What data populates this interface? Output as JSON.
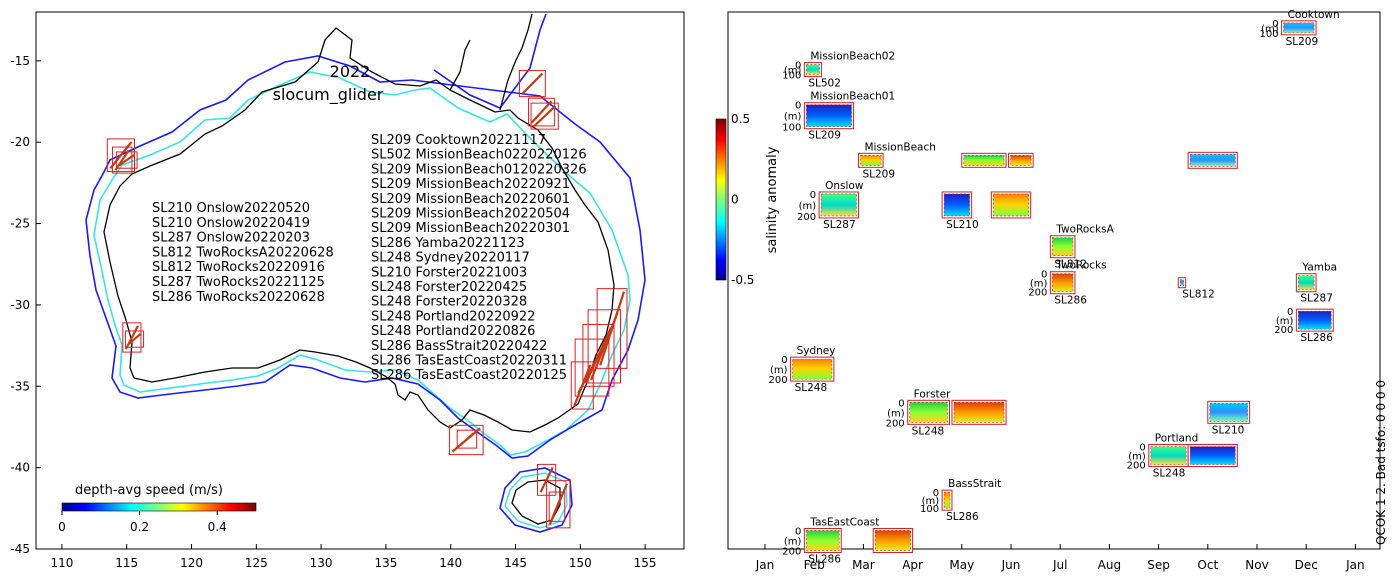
{
  "chart_data": [
    {
      "type": "map",
      "title_lines": [
        "2022",
        "slocum_glider"
      ],
      "xlim": [
        108,
        158
      ],
      "ylim": [
        -45,
        -12
      ],
      "xticks": [
        110,
        115,
        120,
        125,
        130,
        135,
        140,
        145,
        150,
        155
      ],
      "yticks": [
        -15,
        -20,
        -25,
        -30,
        -35,
        -40,
        -45
      ],
      "west_deployments": [
        "SL210 Onslow20220520",
        "SL210 Onslow20220419",
        "SL287 Onslow20220203",
        "SL812 TwoRocksA20220628",
        "SL812 TwoRocks20220916",
        "SL287 TwoRocks20221125",
        "SL286 TwoRocks20220628"
      ],
      "east_deployments": [
        "SL209 Cooktown20221117",
        "SL502 MissionBeach0220220126",
        "SL209 MissionBeach0120220326",
        "SL209 MissionBeach20220921",
        "SL209 MissionBeach20220601",
        "SL209 MissionBeach20220504",
        "SL209 MissionBeach20220301",
        "SL286 Yamba20221123",
        "SL248 Sydney20220117",
        "SL210 Forster20221003",
        "SL248 Forster20220425",
        "SL248 Forster20220328",
        "SL248 Portland20220922",
        "SL248 Portland20220826",
        "SL286 BassStrait20220422",
        "SL286 TasEastCoast20220311",
        "SL286 TasEastCoast20220125"
      ],
      "colorbar": {
        "label": "depth-avg speed (m/s)",
        "ticks": [
          "0",
          "0.2",
          "0.4"
        ],
        "range": [
          0,
          0.5
        ]
      },
      "deployment_boxes": [
        {
          "lon": [
            145.3,
            147.3
          ],
          "lat": [
            -17.2,
            -15.6
          ]
        },
        {
          "lon": [
            146.0,
            148.0
          ],
          "lat": [
            -19.0,
            -17.3
          ]
        },
        {
          "lon": [
            146.2,
            148.3
          ],
          "lat": [
            -19.2,
            -17.6
          ]
        },
        {
          "lon": [
            113.5,
            115.6
          ],
          "lat": [
            -21.8,
            -19.8
          ]
        },
        {
          "lon": [
            113.9,
            115.4
          ],
          "lat": [
            -21.9,
            -20.3
          ]
        },
        {
          "lon": [
            114.2,
            115.8
          ],
          "lat": [
            -21.6,
            -20.6
          ]
        },
        {
          "lon": [
            114.7,
            116.1
          ],
          "lat": [
            -32.9,
            -31.1
          ]
        },
        {
          "lon": [
            114.9,
            116.3
          ],
          "lat": [
            -32.6,
            -31.6
          ]
        },
        {
          "lon": [
            151.3,
            153.6
          ],
          "lat": [
            -33.9,
            -29.0
          ]
        },
        {
          "lon": [
            150.6,
            153.1
          ],
          "lat": [
            -34.8,
            -30.3
          ]
        },
        {
          "lon": [
            150.2,
            152.6
          ],
          "lat": [
            -35.0,
            -31.2
          ]
        },
        {
          "lon": [
            149.6,
            152.2
          ],
          "lat": [
            -35.6,
            -32.1
          ]
        },
        {
          "lon": [
            149.3,
            151.0
          ],
          "lat": [
            -36.4,
            -33.5
          ]
        },
        {
          "lon": [
            139.9,
            142.5
          ],
          "lat": [
            -39.2,
            -37.4
          ]
        },
        {
          "lon": [
            140.5,
            142.0
          ],
          "lat": [
            -38.8,
            -37.7
          ]
        },
        {
          "lon": [
            146.7,
            148.1
          ],
          "lat": [
            -41.7,
            -39.8
          ]
        },
        {
          "lon": [
            147.4,
            149.2
          ],
          "lat": [
            -43.7,
            -40.8
          ]
        },
        {
          "lon": [
            147.6,
            148.8
          ],
          "lat": [
            -43.3,
            -41.5
          ]
        }
      ]
    },
    {
      "type": "timeline",
      "ylabel_colorbar": "salinity anomaly",
      "colorbar_ticks": [
        "0.5",
        "0",
        "-0.5"
      ],
      "colorbar_range": [
        -0.5,
        0.5
      ],
      "months": [
        "Jan",
        "Feb",
        "Mar",
        "Apr",
        "May",
        "Jun",
        "Jul",
        "Aug",
        "Sep",
        "Oct",
        "Nov",
        "Dec",
        "Jan"
      ],
      "side_note": "QCOK 1  2. Bad tsfo: 0  0  0  0",
      "panels": [
        {
          "site": "Cooktown",
          "glider": "SL209",
          "depth_max": "100",
          "start": 10.5,
          "end": 11.2,
          "row": 1.1,
          "h": 14
        },
        {
          "site": "MissionBeach02",
          "glider": "SL502",
          "depth_max": "100",
          "start": 0.8,
          "end": 1.15,
          "row": 4.0,
          "h": 14
        },
        {
          "site": "MissionBeach01",
          "glider": "SL209",
          "depth_max": "100",
          "start": 0.8,
          "end": 1.8,
          "row": 7.2,
          "h": 26
        },
        {
          "site": "MissionBeach",
          "glider": "SL209",
          "depth_max": "",
          "start": 1.9,
          "end": 2.4,
          "row": 10.3,
          "h": 14
        },
        {
          "site": "",
          "glider": "",
          "depth_max": "",
          "start": 4.0,
          "end": 4.9,
          "row": 10.3,
          "h": 14
        },
        {
          "site": "",
          "glider": "",
          "depth_max": "",
          "start": 4.95,
          "end": 5.45,
          "row": 10.3,
          "h": 14
        },
        {
          "site": "",
          "glider": "",
          "depth_max": "",
          "start": 8.6,
          "end": 9.6,
          "row": 10.3,
          "h": 16
        },
        {
          "site": "Onslow",
          "glider": "SL287",
          "depth_max": "200",
          "start": 1.1,
          "end": 1.9,
          "row": 13.4,
          "h": 26
        },
        {
          "site": "",
          "glider": "SL210",
          "depth_max": "",
          "start": 3.6,
          "end": 4.2,
          "row": 13.4,
          "h": 26
        },
        {
          "site": "",
          "glider": "",
          "depth_max": "",
          "start": 4.6,
          "end": 5.4,
          "row": 13.4,
          "h": 26
        },
        {
          "site": "TwoRocksA",
          "glider": "SL812",
          "depth_max": "",
          "start": 5.8,
          "end": 6.3,
          "row": 16.3,
          "h": 22
        },
        {
          "site": "TwoRocks",
          "glider": "SL286",
          "depth_max": "200",
          "start": 5.8,
          "end": 6.3,
          "row": 18.8,
          "h": 22
        },
        {
          "site": "",
          "glider": "SL812",
          "depth_max": "",
          "start": 8.4,
          "end": 8.55,
          "row": 18.8,
          "h": 10
        },
        {
          "site": "Yamba",
          "glider": "SL287",
          "depth_max": "",
          "start": 10.8,
          "end": 11.2,
          "row": 18.8,
          "h": 18
        },
        {
          "site": "",
          "glider": "SL286",
          "depth_max": "200",
          "start": 10.8,
          "end": 11.55,
          "row": 21.4,
          "h": 22
        },
        {
          "site": "Sydney",
          "glider": "SL248",
          "depth_max": "200",
          "start": 0.52,
          "end": 1.4,
          "row": 24.8,
          "h": 24
        },
        {
          "site": "Forster",
          "glider": "SL248",
          "depth_max": "200",
          "start": 2.9,
          "end": 3.75,
          "row": 27.8,
          "h": 24
        },
        {
          "site": "",
          "glider": "",
          "depth_max": "",
          "start": 3.8,
          "end": 4.9,
          "row": 27.8,
          "h": 24
        },
        {
          "site": "",
          "glider": "SL210",
          "depth_max": "",
          "start": 9.0,
          "end": 9.85,
          "row": 27.8,
          "h": 22
        },
        {
          "site": "Portland",
          "glider": "SL248",
          "depth_max": "200",
          "start": 7.8,
          "end": 8.6,
          "row": 30.8,
          "h": 22
        },
        {
          "site": "",
          "glider": "",
          "depth_max": "",
          "start": 8.6,
          "end": 9.6,
          "row": 30.8,
          "h": 22
        },
        {
          "site": "BassStrait",
          "glider": "SL286",
          "depth_max": "100",
          "start": 3.6,
          "end": 3.8,
          "row": 33.9,
          "h": 20
        },
        {
          "site": "TasEastCoast",
          "glider": "SL286",
          "depth_max": "200",
          "start": 0.8,
          "end": 1.55,
          "row": 36.7,
          "h": 24
        },
        {
          "site": "",
          "glider": "",
          "depth_max": "",
          "start": 2.2,
          "end": 3.0,
          "row": 36.7,
          "h": 24
        }
      ]
    }
  ],
  "ui": {
    "depth_unit_label": "(m)",
    "depth_zero_label": "0"
  }
}
